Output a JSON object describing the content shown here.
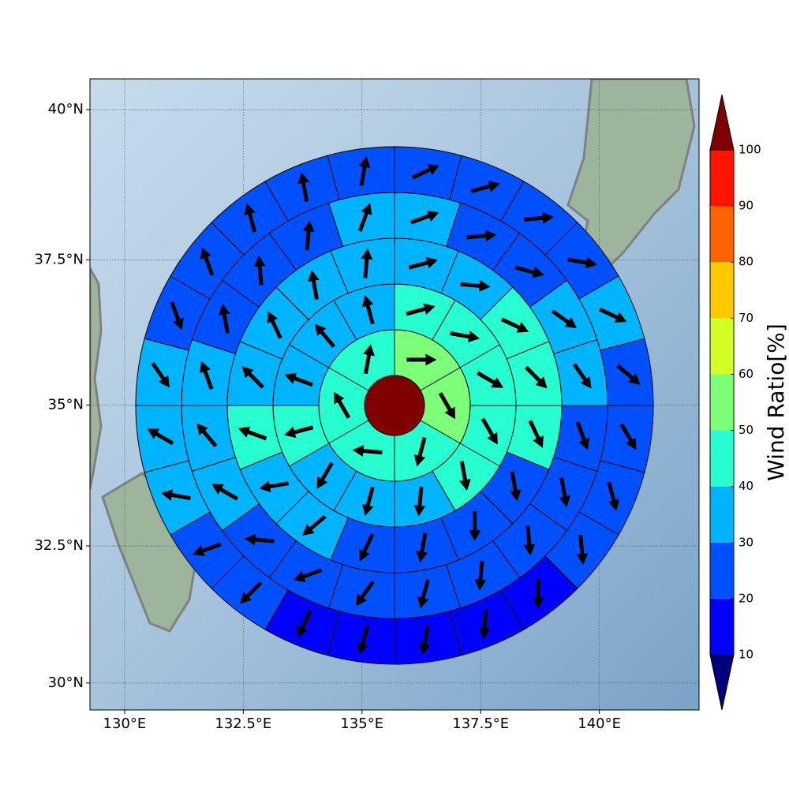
{
  "chart_data": {
    "type": "polar-sector-map",
    "xlim": [
      129.27,
      142.1
    ],
    "ylim": [
      29.5,
      40.5
    ],
    "xticks": [
      {
        "value": 130,
        "label": "130°E"
      },
      {
        "value": 132.5,
        "label": "132.5°E"
      },
      {
        "value": 135,
        "label": "135°E"
      },
      {
        "value": 137.5,
        "label": "137.5°E"
      },
      {
        "value": 140,
        "label": "140°E"
      }
    ],
    "yticks": [
      {
        "value": 30,
        "label": "30°N"
      },
      {
        "value": 32.5,
        "label": "32.5°N"
      },
      {
        "value": 35,
        "label": "35°N"
      },
      {
        "value": 37.5,
        "label": "37.5°N"
      },
      {
        "value": 40,
        "label": "40°N"
      }
    ],
    "grid": true,
    "projection": "mercator",
    "center_value": 100,
    "rings": [
      {
        "values": [
          55,
          55,
          45,
          45,
          45,
          45
        ],
        "directions": [
          90,
          150,
          195,
          275,
          330,
          10
        ]
      },
      {
        "values": [
          45,
          45,
          45,
          45,
          45,
          35,
          35,
          35,
          45,
          35,
          35,
          35
        ],
        "directions": [
          75,
          100,
          120,
          150,
          170,
          185,
          195,
          210,
          255,
          290,
          320,
          345
        ]
      },
      {
        "values": [
          35,
          35,
          45,
          45,
          45,
          25,
          25,
          25,
          25,
          35,
          35,
          45,
          35,
          35,
          35,
          35
        ],
        "directions": [
          75,
          95,
          115,
          135,
          155,
          170,
          180,
          190,
          205,
          230,
          260,
          290,
          315,
          335,
          350,
          5
        ]
      },
      {
        "values": [
          35,
          25,
          25,
          35,
          35,
          25,
          25,
          25,
          25,
          25,
          25,
          25,
          25,
          35,
          35,
          35,
          25,
          25,
          25,
          35
        ],
        "directions": [
          70,
          85,
          105,
          125,
          145,
          160,
          170,
          175,
          185,
          195,
          215,
          250,
          275,
          300,
          320,
          340,
          350,
          355,
          5,
          20
        ]
      },
      {
        "values": [
          25,
          25,
          25,
          25,
          35,
          25,
          25,
          25,
          25,
          15,
          15,
          15,
          15,
          15,
          25,
          25,
          35,
          35,
          35,
          25,
          25,
          25,
          25,
          25
        ],
        "directions": [
          65,
          75,
          85,
          100,
          115,
          130,
          150,
          165,
          175,
          180,
          185,
          190,
          195,
          205,
          225,
          250,
          280,
          300,
          145,
          160,
          340,
          345,
          350,
          10
        ]
      }
    ],
    "colorbar": {
      "label": "Wind Ratio[%]",
      "levels": [
        10,
        20,
        30,
        40,
        50,
        60,
        70,
        80,
        90,
        100
      ],
      "colors": [
        "#0000ff",
        "#0050ff",
        "#00b4ff",
        "#28ffd0",
        "#7dff7a",
        "#d4ff24",
        "#ffc800",
        "#ff6400",
        "#ff1400"
      ],
      "under_color": "#00007f",
      "over_color": "#7f0000"
    }
  }
}
